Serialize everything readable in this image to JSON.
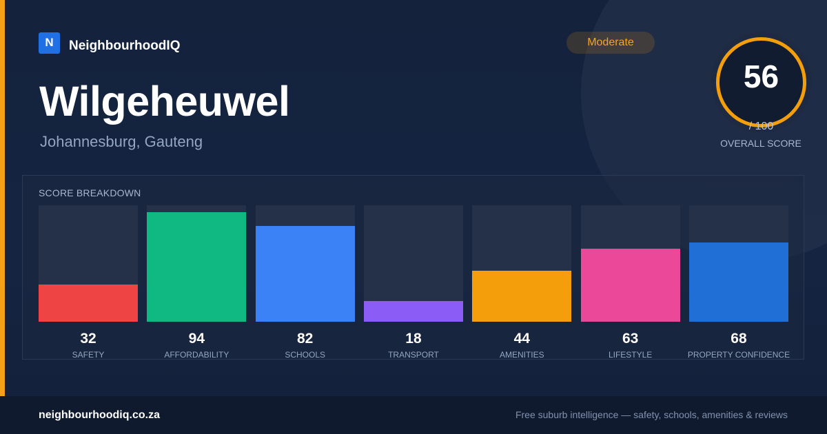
{
  "brand": {
    "logo_letter": "N",
    "name": "NeighbourhoodIQ",
    "logo_color": "#1f6fe5"
  },
  "suburb": {
    "name": "Wilgeheuwel",
    "location": "Johannesburg, Gauteng"
  },
  "rating": {
    "badge": "Moderate",
    "score": "56",
    "max": "/ 100",
    "label": "OVERALL SCORE",
    "score_fraction": 0.56,
    "ring_color": "#f59e0b"
  },
  "breakdown": {
    "title": "SCORE BREAKDOWN"
  },
  "chart_data": {
    "type": "bar",
    "title": "SCORE BREAKDOWN",
    "categories": [
      "SAFETY",
      "AFFORDABILITY",
      "SCHOOLS",
      "TRANSPORT",
      "AMENITIES",
      "LIFESTYLE",
      "PROPERTY CONFIDENCE"
    ],
    "values": [
      32,
      94,
      82,
      18,
      44,
      63,
      68
    ],
    "value_labels": [
      "32",
      "94",
      "82",
      "18",
      "44",
      "63",
      "68"
    ],
    "colors": [
      "#ef4444",
      "#10b981",
      "#3b82f6",
      "#8b5cf6",
      "#f59e0b",
      "#ec4899",
      "#1f6fd6"
    ],
    "ylim": [
      0,
      100
    ]
  },
  "footer": {
    "domain": "neighbourhoodiq.co.za",
    "tagline": "Free suburb intelligence — safety, schools, amenities & reviews"
  },
  "theme": {
    "accent": "#f5a117"
  }
}
